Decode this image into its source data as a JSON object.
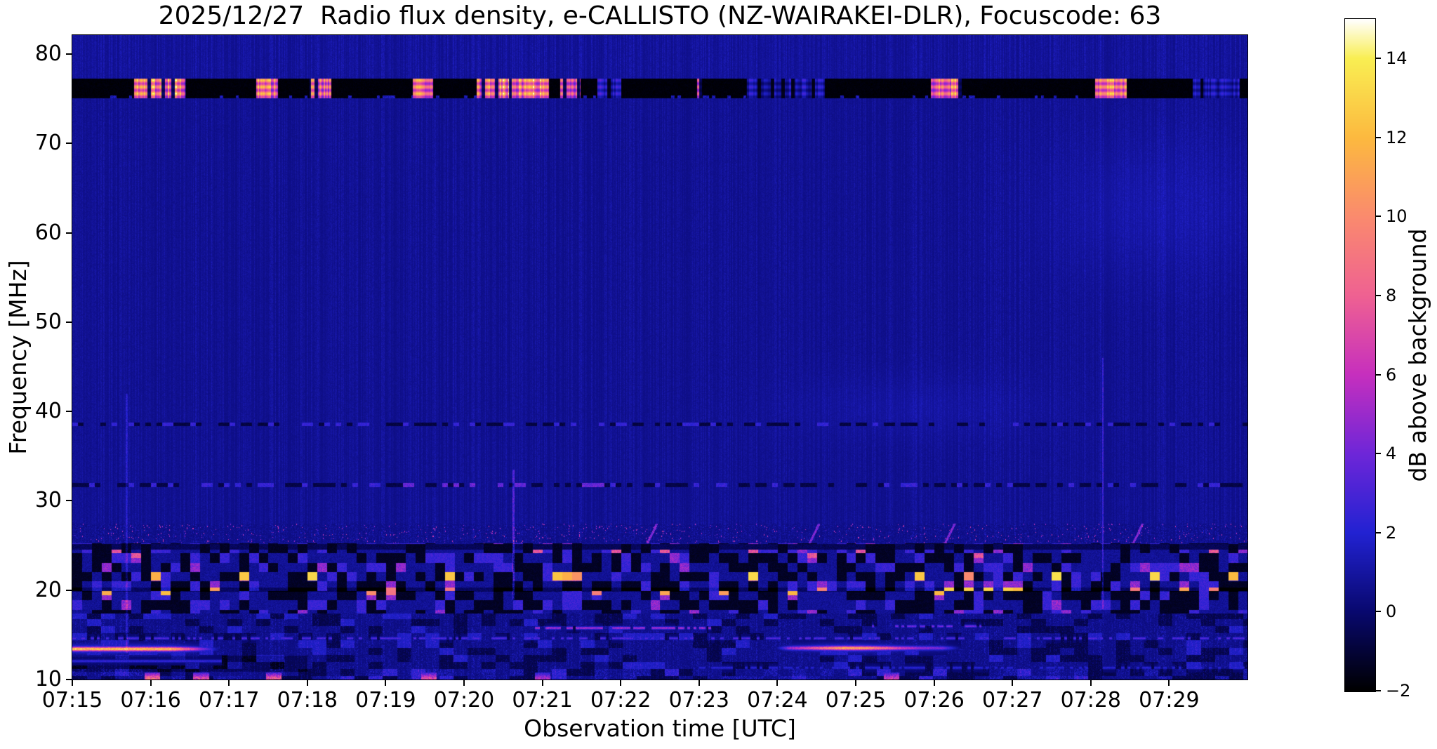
{
  "chart_data": {
    "type": "heatmap",
    "subtype": "radio-spectrogram",
    "title": "2025/12/27  Radio flux density, e-CALLISTO (NZ-WAIRAKEI-DLR), Focuscode: 63",
    "xlabel": "Observation time [UTC]",
    "ylabel": "Frequency [MHz]",
    "x_ticks": [
      "07:15",
      "07:16",
      "07:17",
      "07:18",
      "07:19",
      "07:20",
      "07:21",
      "07:22",
      "07:23",
      "07:24",
      "07:25",
      "07:26",
      "07:27",
      "07:28",
      "07:29"
    ],
    "x_start_utc": "07:15",
    "x_end_utc": "07:30",
    "x_minutes_span": 15,
    "y_ticks": [
      80,
      70,
      60,
      50,
      40,
      30,
      20,
      10
    ],
    "freq_range_mhz": [
      10,
      82.12
    ],
    "grid": false,
    "colorbar": {
      "label": "dB above background",
      "ticks": [
        14,
        12,
        10,
        8,
        6,
        4,
        2,
        0,
        -2
      ],
      "range": [
        -2,
        15
      ],
      "position": "right"
    },
    "colormap": {
      "name": "CMRmap-like (black-navy-blue-violet-magenta-pink-orange-yellow-white)",
      "stops": [
        [
          -2,
          "#000000"
        ],
        [
          0,
          "#08086e"
        ],
        [
          2,
          "#2222d2"
        ],
        [
          4,
          "#6e26d8"
        ],
        [
          6,
          "#c62fbe"
        ],
        [
          8,
          "#ef6192"
        ],
        [
          10,
          "#fa8a6e"
        ],
        [
          12,
          "#fcb93f"
        ],
        [
          14,
          "#f9ee52"
        ],
        [
          15,
          "#ffffff"
        ]
      ]
    },
    "features": {
      "background": {
        "typical_db": 0.9,
        "texture": "dark navy with vertical streak noise"
      },
      "rfi_blackout_band": {
        "freq_mhz": [
          75.1,
          77.3
        ],
        "base_db": -2,
        "bursts": [
          {
            "t_min": [
              0.78,
              1.45
            ],
            "peak_db": 15
          },
          {
            "t_min": [
              2.34,
              2.62
            ],
            "peak_db": 14
          },
          {
            "t_min": [
              3.02,
              3.3
            ],
            "peak_db": 14
          },
          {
            "t_min": [
              4.34,
              4.6
            ],
            "peak_db": 14
          },
          {
            "t_min": [
              5.16,
              6.08
            ],
            "peak_db": 15
          },
          {
            "t_min": [
              6.22,
              6.48
            ],
            "peak_db": 13
          },
          {
            "t_min": [
              6.7,
              7.0
            ],
            "peak_db": 4
          },
          {
            "t_min": [
              7.97,
              8.03
            ],
            "peak_db": 12
          },
          {
            "t_min": [
              8.6,
              9.6
            ],
            "peak_db": 3
          },
          {
            "t_min": [
              10.95,
              11.35
            ],
            "peak_db": 14
          },
          {
            "t_min": [
              13.05,
              13.45
            ],
            "peak_db": 14
          },
          {
            "t_min": [
              14.3,
              14.9
            ],
            "peak_db": 3
          }
        ]
      },
      "narrowband_dotted_lines": [
        {
          "freq_mhz": 38.6,
          "t_min": [
            0,
            15
          ],
          "db_range": [
            -1.2,
            2.5
          ]
        },
        {
          "freq_mhz": 31.8,
          "t_min": [
            0,
            15
          ],
          "db_range": [
            -1.2,
            3.5
          ],
          "enhanced_t_min": [
            4.0,
            6.8
          ]
        }
      ],
      "thin_lines": [
        {
          "freq_mhz": 15.8,
          "t_min": [
            5.9,
            8.15
          ],
          "amp_db": 5.8,
          "gate": 0.25
        },
        {
          "freq_mhz": 16.0,
          "t_min": [
            10.2,
            11.6
          ],
          "amp_db": 4.2,
          "gate": 0.35
        },
        {
          "freq_mhz": 14.65,
          "t_min": [
            0,
            15
          ],
          "amp_db": 3.4,
          "gate": 0.5
        },
        {
          "freq_mhz": 12.1,
          "t_min": [
            0,
            1.9
          ],
          "amp_db": 2.6,
          "gate": 0
        },
        {
          "freq_mhz": 11.35,
          "t_min": [
            7.9,
            15
          ],
          "amp_db": 2.3,
          "gate": 0.45
        }
      ],
      "bright_streaks": [
        {
          "freq_mhz": 13.45,
          "t_min": [
            0.0,
            1.9
          ],
          "peak_db": 11,
          "env": "plateau",
          "fade_out_min": 0.65
        },
        {
          "freq_mhz": 13.55,
          "t_min": [
            8.95,
            11.35
          ],
          "peak_db": 10,
          "env": "gauss",
          "center_min": 9.95,
          "sigma_min": 0.6,
          "floor_db": 3.5
        }
      ],
      "shortwave_activity_band": {
        "freq_mhz": [
          10,
          27.5
        ],
        "description": "dense blocky shortwave broadcast RFI with black dropouts and bright dots",
        "block_db_range": [
          -2,
          6
        ],
        "hot_dot_rows_mhz": [
          21.6,
          19.9
        ],
        "hot_dot_db": [
          9,
          14
        ],
        "dark_lanes_mhz": [
          24.9,
          20.1,
          17.1
        ]
      },
      "vertical_streaks": [
        {
          "t_min": 0.69,
          "freq_mhz": [
            13,
            42
          ],
          "db": 1.6
        },
        {
          "t_min": 5.63,
          "freq_mhz": [
            19,
            33.5
          ],
          "db": 3.0
        },
        {
          "t_min": 13.15,
          "freq_mhz": [
            18,
            46
          ],
          "db": 2.2
        }
      ],
      "drift_traces": [
        {
          "t_min": 7.35,
          "freq_mhz": [
            25.5,
            27.8
          ]
        },
        {
          "t_min": 9.42,
          "freq_mhz": [
            25.5,
            27.8
          ]
        },
        {
          "t_min": 11.15,
          "freq_mhz": [
            25.5,
            27.8
          ]
        },
        {
          "t_min": 13.55,
          "freq_mhz": [
            25.5,
            27.8
          ]
        }
      ],
      "bottom_hotspots": [
        {
          "t_min": 1.02,
          "peak_db": 11
        },
        {
          "t_min": 1.64,
          "peak_db": 9
        },
        {
          "t_min": 2.57,
          "peak_db": 10
        },
        {
          "t_min": 4.55,
          "peak_db": 9
        },
        {
          "t_min": 6.0,
          "peak_db": 7
        },
        {
          "t_min": 10.45,
          "peak_db": 8
        }
      ]
    }
  }
}
